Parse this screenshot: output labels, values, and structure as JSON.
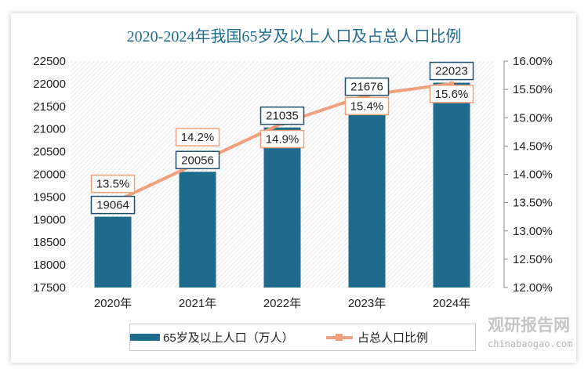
{
  "chart_data": {
    "type": "bar+line",
    "title": "2020-2024年我国65岁及以上人口及占总人口比例",
    "categories": [
      "2020年",
      "2021年",
      "2022年",
      "2023年",
      "2024年"
    ],
    "series": [
      {
        "name": "65岁及以上人口（万人）",
        "type": "bar",
        "axis": "left",
        "values": [
          19064,
          20056,
          21035,
          21676,
          22023
        ],
        "labels": [
          "19064",
          "20056",
          "21035",
          "21676",
          "22023"
        ],
        "color": "#1f6b8e"
      },
      {
        "name": "占总人口比例",
        "type": "line",
        "axis": "right",
        "values": [
          13.5,
          14.2,
          14.9,
          15.4,
          15.6
        ],
        "labels": [
          "13.5%",
          "14.2%",
          "14.9%",
          "15.4%",
          "15.6%"
        ],
        "color": "#f0a07a"
      }
    ],
    "y_left": {
      "range": [
        17500,
        22500
      ],
      "ticks": [
        "17500",
        "18000",
        "18500",
        "19000",
        "19500",
        "20000",
        "20500",
        "21000",
        "21500",
        "22000",
        "22500"
      ]
    },
    "y_right": {
      "range": [
        12,
        16
      ],
      "ticks": [
        "12.00%",
        "12.50%",
        "13.00%",
        "13.50%",
        "14.00%",
        "14.50%",
        "15.00%",
        "15.50%",
        "16.00%"
      ]
    },
    "grid": "hatched background",
    "legend": "bottom"
  },
  "watermark": {
    "cn": "观研报告网",
    "en": "chinabaogao.com"
  }
}
